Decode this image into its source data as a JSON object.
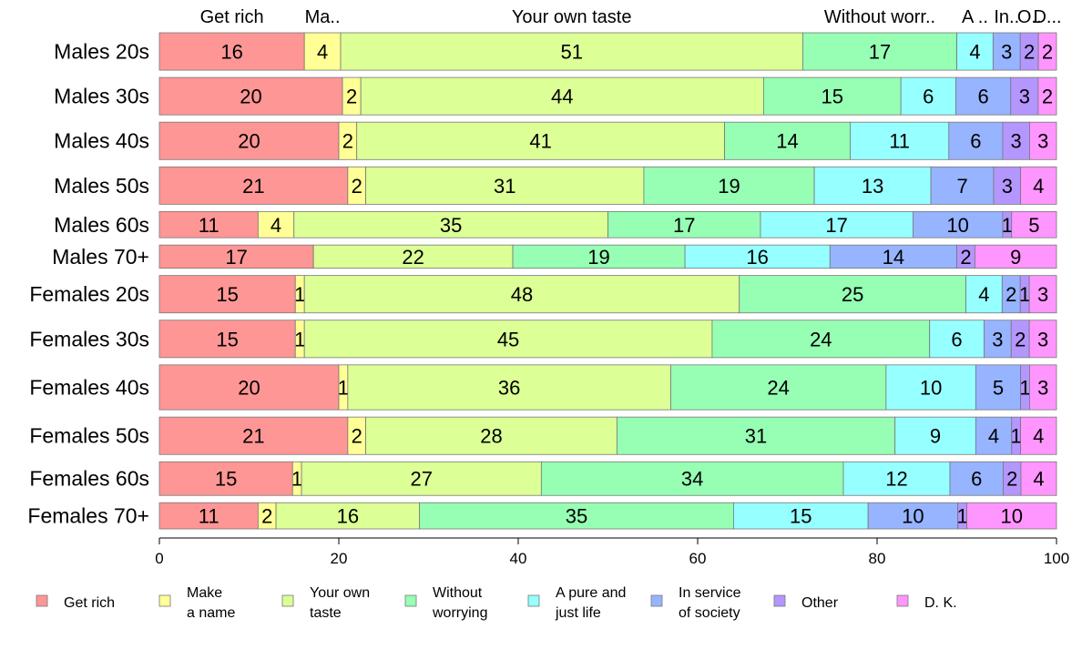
{
  "chart_data": {
    "type": "bar",
    "orientation": "horizontal",
    "stacked": true,
    "xlim": [
      0,
      100
    ],
    "xticks": [
      0,
      20,
      40,
      60,
      80,
      100
    ],
    "categories": [
      "Males 20s",
      "Males 30s",
      "Males 40s",
      "Males 50s",
      "Males 60s",
      "Males 70+",
      "Females 20s",
      "Females 30s",
      "Females 40s",
      "Females 50s",
      "Females 60s",
      "Females 70+"
    ],
    "top_labels": [
      "Get rich",
      "Ma..",
      "Your own taste",
      "Without worr..",
      "A ..",
      "In..",
      "O..",
      "D..."
    ],
    "series": [
      {
        "name": "Get rich",
        "color": "#ff9696",
        "values": [
          16,
          20,
          20,
          21,
          11,
          17,
          15,
          15,
          20,
          21,
          15,
          11
        ]
      },
      {
        "name": "Make a name",
        "color": "#ffff96",
        "values": [
          4,
          2,
          2,
          2,
          4,
          0,
          1,
          1,
          1,
          2,
          1,
          2
        ]
      },
      {
        "name": "Your own taste",
        "color": "#dcff96",
        "values": [
          51,
          44,
          41,
          31,
          35,
          22,
          48,
          45,
          36,
          28,
          27,
          16
        ]
      },
      {
        "name": "Without worrying",
        "color": "#96ffb4",
        "values": [
          17,
          15,
          14,
          19,
          17,
          19,
          25,
          24,
          24,
          31,
          34,
          35
        ]
      },
      {
        "name": "A pure and just life",
        "color": "#96ffff",
        "values": [
          4,
          6,
          11,
          13,
          17,
          16,
          4,
          6,
          10,
          9,
          12,
          15
        ]
      },
      {
        "name": "In service of society",
        "color": "#96b4ff",
        "values": [
          3,
          6,
          6,
          7,
          10,
          14,
          2,
          3,
          5,
          4,
          6,
          10
        ]
      },
      {
        "name": "Other",
        "color": "#b496ff",
        "values": [
          2,
          3,
          3,
          3,
          1,
          2,
          1,
          2,
          1,
          1,
          2,
          1
        ]
      },
      {
        "name": "D. K.",
        "color": "#ff96ff",
        "values": [
          2,
          2,
          3,
          4,
          5,
          9,
          3,
          3,
          3,
          4,
          4,
          10
        ]
      }
    ],
    "legend": {
      "placement": "bottom",
      "lines": [
        [
          "Get rich"
        ],
        [
          "Make",
          "a name"
        ],
        [
          "Your own",
          "taste"
        ],
        [
          "Without",
          "worrying"
        ],
        [
          "A pure and",
          "just life"
        ],
        [
          "In service",
          "of society"
        ],
        [
          "Other"
        ],
        [
          "D. K."
        ]
      ]
    }
  }
}
